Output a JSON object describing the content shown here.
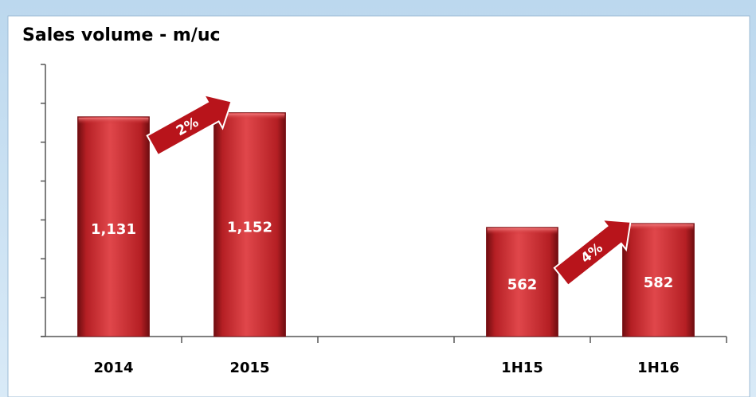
{
  "chart_data": {
    "type": "bar",
    "title": "Sales volume - m/uc",
    "categories": [
      "2014",
      "2015",
      null,
      "1H15",
      "1H16"
    ],
    "values": [
      1131,
      1152,
      null,
      562,
      582
    ],
    "value_labels": [
      "1,131",
      "1,152",
      null,
      "562",
      "582"
    ],
    "color": "#c8262b",
    "ylim": [
      0,
      1400
    ],
    "yticks": [
      0,
      200,
      400,
      600,
      800,
      1000,
      1200,
      1400
    ],
    "annotations": [
      "2%",
      "4%"
    ]
  }
}
